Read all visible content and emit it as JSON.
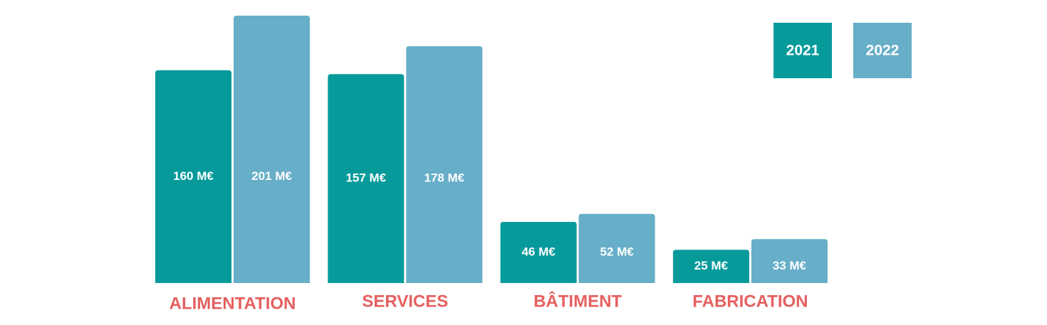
{
  "chart_data": {
    "type": "bar",
    "categories": [
      "ALIMENTATION",
      "SERVICES",
      "BÂTIMENT",
      "FABRICATION"
    ],
    "series": [
      {
        "name": "2021",
        "color": "#079a9b",
        "values": [
          160,
          157,
          46,
          25
        ],
        "value_labels": [
          "160 M€",
          "157 M€",
          "46 M€",
          "25 M€"
        ]
      },
      {
        "name": "2022",
        "color": "#67aec8",
        "values": [
          201,
          178,
          52,
          33
        ],
        "value_labels": [
          "201 M€",
          "178 M€",
          "52 M€",
          "33 M€"
        ]
      }
    ],
    "category_label_color": "#e5605f"
  }
}
